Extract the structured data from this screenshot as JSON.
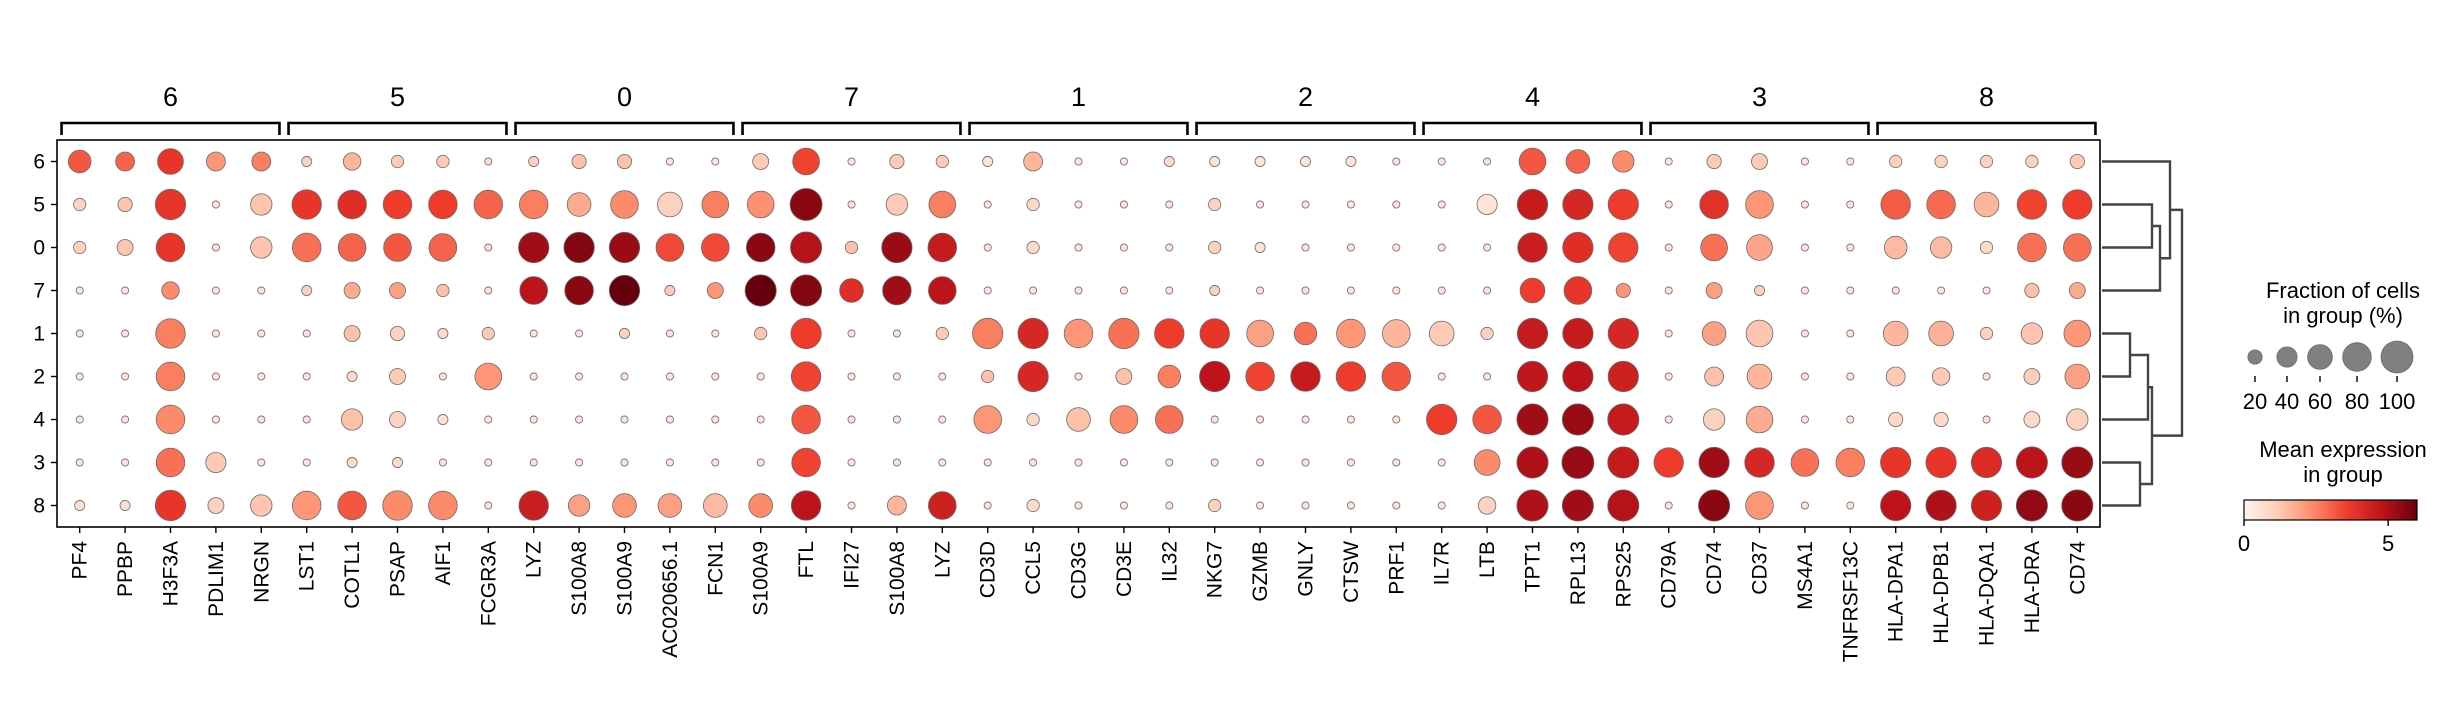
{
  "chart_data": {
    "type": "dotplot",
    "title": "",
    "xlabel": "",
    "ylabel": "",
    "groups": [
      {
        "label": "6",
        "genes": [
          "PF4",
          "PPBP",
          "H3F3A",
          "PDLIM1",
          "NRGN"
        ]
      },
      {
        "label": "5",
        "genes": [
          "LST1",
          "COTL1",
          "PSAP",
          "AIF1",
          "FCGR3A"
        ]
      },
      {
        "label": "0",
        "genes": [
          "LYZ",
          "S100A8",
          "S100A9",
          "AC020656.1",
          "FCN1"
        ]
      },
      {
        "label": "7",
        "genes": [
          "S100A9",
          "FTL",
          "IFI27",
          "S100A8",
          "LYZ"
        ]
      },
      {
        "label": "1",
        "genes": [
          "CD3D",
          "CCL5",
          "CD3G",
          "CD3E",
          "IL32"
        ]
      },
      {
        "label": "2",
        "genes": [
          "NKG7",
          "GZMB",
          "GNLY",
          "CTSW",
          "PRF1"
        ]
      },
      {
        "label": "4",
        "genes": [
          "IL7R",
          "LTB",
          "TPT1",
          "RPL13",
          "RPS25"
        ]
      },
      {
        "label": "3",
        "genes": [
          "CD79A",
          "CD74",
          "CD37",
          "MS4A1",
          "TNFRSF13C"
        ]
      },
      {
        "label": "8",
        "genes": [
          "HLA-DPA1",
          "HLA-DPB1",
          "HLA-DQA1",
          "HLA-DRA",
          "CD74"
        ]
      }
    ],
    "rows": [
      "6",
      "5",
      "0",
      "7",
      "1",
      "2",
      "4",
      "3",
      "8"
    ],
    "fraction": [
      [
        50,
        35,
        65,
        35,
        35,
        10,
        30,
        15,
        15,
        5,
        10,
        20,
        20,
        5,
        5,
        25,
        70,
        5,
        20,
        15,
        10,
        35,
        5,
        5,
        10,
        10,
        10,
        10,
        10,
        5,
        5,
        5,
        70,
        55,
        45,
        5,
        20,
        25,
        5,
        5,
        15,
        15,
        15,
        15,
        20
      ],
      [
        15,
        20,
        90,
        5,
        45,
        85,
        80,
        80,
        80,
        80,
        80,
        55,
        75,
        60,
        70,
        70,
        100,
        5,
        45,
        70,
        5,
        15,
        5,
        5,
        5,
        15,
        5,
        5,
        5,
        5,
        5,
        40,
        90,
        90,
        90,
        5,
        80,
        75,
        5,
        5,
        85,
        80,
        60,
        85,
        85
      ],
      [
        15,
        25,
        80,
        5,
        45,
        80,
        75,
        75,
        75,
        5,
        90,
        90,
        90,
        75,
        75,
        80,
        95,
        15,
        90,
        80,
        5,
        15,
        5,
        5,
        5,
        15,
        10,
        5,
        5,
        5,
        5,
        5,
        85,
        90,
        85,
        5,
        70,
        65,
        5,
        5,
        50,
        45,
        15,
        80,
        75
      ],
      [
        5,
        5,
        30,
        5,
        5,
        10,
        25,
        25,
        15,
        5,
        75,
        80,
        90,
        10,
        25,
        95,
        95,
        55,
        80,
        75,
        5,
        5,
        5,
        5,
        5,
        10,
        5,
        5,
        5,
        5,
        5,
        5,
        60,
        75,
        20,
        5,
        25,
        10,
        5,
        5,
        5,
        5,
        5,
        20,
        25
      ],
      [
        5,
        5,
        85,
        5,
        5,
        5,
        25,
        20,
        10,
        15,
        5,
        5,
        10,
        5,
        5,
        15,
        90,
        5,
        5,
        15,
        90,
        90,
        80,
        90,
        85,
        85,
        70,
        50,
        80,
        75,
        60,
        15,
        90,
        90,
        90,
        5,
        55,
        70,
        5,
        5,
        60,
        60,
        15,
        45,
        70
      ],
      [
        5,
        5,
        80,
        5,
        5,
        5,
        10,
        25,
        5,
        70,
        5,
        5,
        5,
        5,
        5,
        5,
        85,
        5,
        5,
        5,
        15,
        90,
        5,
        25,
        50,
        90,
        80,
        85,
        85,
        80,
        5,
        5,
        90,
        90,
        90,
        5,
        35,
        60,
        5,
        5,
        35,
        30,
        5,
        25,
        60
      ],
      [
        5,
        5,
        80,
        5,
        5,
        5,
        45,
        25,
        10,
        5,
        5,
        5,
        5,
        5,
        5,
        5,
        80,
        5,
        5,
        5,
        75,
        15,
        55,
        75,
        75,
        5,
        5,
        5,
        5,
        5,
        90,
        80,
        95,
        95,
        95,
        5,
        45,
        70,
        5,
        5,
        20,
        20,
        5,
        25,
        45
      ],
      [
        5,
        5,
        80,
        40,
        5,
        5,
        10,
        10,
        5,
        5,
        5,
        5,
        5,
        5,
        5,
        5,
        80,
        5,
        5,
        5,
        5,
        5,
        5,
        5,
        5,
        5,
        5,
        5,
        5,
        5,
        5,
        65,
        95,
        100,
        95,
        85,
        90,
        85,
        75,
        80,
        90,
        90,
        90,
        95,
        95
      ],
      [
        10,
        10,
        90,
        25,
        45,
        80,
        80,
        85,
        80,
        5,
        85,
        45,
        55,
        55,
        55,
        55,
        85,
        5,
        35,
        75,
        5,
        15,
        5,
        5,
        5,
        15,
        5,
        5,
        5,
        5,
        5,
        30,
        95,
        95,
        95,
        5,
        95,
        75,
        5,
        5,
        90,
        90,
        90,
        95,
        95
      ]
    ],
    "expression": [
      [
        3.2,
        3.0,
        3.8,
        2.2,
        2.6,
        1.0,
        1.6,
        1.2,
        1.2,
        0.6,
        1.0,
        1.4,
        1.4,
        0.5,
        0.5,
        1.2,
        3.5,
        0.5,
        1.2,
        1.2,
        0.5,
        1.6,
        0.5,
        0.5,
        0.8,
        0.5,
        0.5,
        0.5,
        0.5,
        0.5,
        0.5,
        0.5,
        3.2,
        3.0,
        2.4,
        0.5,
        1.2,
        1.2,
        0.5,
        0.5,
        1.0,
        1.0,
        1.0,
        1.0,
        1.2
      ],
      [
        1.0,
        1.3,
        3.8,
        0.5,
        1.3,
        3.8,
        4.0,
        3.6,
        3.6,
        3.0,
        2.6,
        1.8,
        2.4,
        1.0,
        2.6,
        2.3,
        5.5,
        0.5,
        1.2,
        2.6,
        0.5,
        0.8,
        0.5,
        0.5,
        0.5,
        1.0,
        0.5,
        0.5,
        0.5,
        0.5,
        0.5,
        0.5,
        4.6,
        4.2,
        3.6,
        0.5,
        3.9,
        2.2,
        0.5,
        0.5,
        3.1,
        2.9,
        1.6,
        3.5,
        3.6
      ],
      [
        1.0,
        1.3,
        3.8,
        0.5,
        1.3,
        2.8,
        3.0,
        3.2,
        3.0,
        0.6,
        5.2,
        5.6,
        5.3,
        3.4,
        3.4,
        5.5,
        4.9,
        1.4,
        5.3,
        4.6,
        0.5,
        0.8,
        0.5,
        0.5,
        0.5,
        1.0,
        0.5,
        0.5,
        0.5,
        0.5,
        0.5,
        0.5,
        4.5,
        4.0,
        3.5,
        0.5,
        2.8,
        1.9,
        0.5,
        0.5,
        1.5,
        1.5,
        0.8,
        2.8,
        2.8
      ],
      [
        0.5,
        0.5,
        2.4,
        0.5,
        0.5,
        1.0,
        1.8,
        2.0,
        1.4,
        0.5,
        4.8,
        5.5,
        6.0,
        1.2,
        2.2,
        6.2,
        5.6,
        4.0,
        5.2,
        4.8,
        0.5,
        0.5,
        0.5,
        0.5,
        0.5,
        1.0,
        0.5,
        0.5,
        0.5,
        0.5,
        0.5,
        0.5,
        3.6,
        3.8,
        2.2,
        0.5,
        2.0,
        1.0,
        0.5,
        0.5,
        0.5,
        0.5,
        0.5,
        1.4,
        1.8
      ],
      [
        0.5,
        0.5,
        2.6,
        0.5,
        0.5,
        0.5,
        1.4,
        1.0,
        0.8,
        1.2,
        0.5,
        0.5,
        1.0,
        0.5,
        0.5,
        1.3,
        3.6,
        0.5,
        0.5,
        1.2,
        2.6,
        4.2,
        2.2,
        2.8,
        3.6,
        3.8,
        2.0,
        2.8,
        2.2,
        1.6,
        1.2,
        1.0,
        4.6,
        4.6,
        4.2,
        0.5,
        2.0,
        1.3,
        0.5,
        0.5,
        1.6,
        1.7,
        1.0,
        1.3,
        2.2
      ],
      [
        0.5,
        0.5,
        2.6,
        0.5,
        0.5,
        0.5,
        0.8,
        1.2,
        0.5,
        2.2,
        0.5,
        0.5,
        0.5,
        0.5,
        0.5,
        0.5,
        3.5,
        0.5,
        0.5,
        0.5,
        1.4,
        4.2,
        0.5,
        1.4,
        2.6,
        4.8,
        3.5,
        4.6,
        3.6,
        3.2,
        0.5,
        0.5,
        4.7,
        4.8,
        4.4,
        0.5,
        1.4,
        1.6,
        0.5,
        0.5,
        1.2,
        1.2,
        0.5,
        1.1,
        2.0
      ],
      [
        0.5,
        0.5,
        2.4,
        0.5,
        0.5,
        0.5,
        1.4,
        1.0,
        0.6,
        0.5,
        0.5,
        0.5,
        0.5,
        0.5,
        0.5,
        0.5,
        3.2,
        0.5,
        0.5,
        0.5,
        2.2,
        0.8,
        1.4,
        2.4,
        2.8,
        0.5,
        0.5,
        0.5,
        0.5,
        0.5,
        3.6,
        3.2,
        5.2,
        5.3,
        4.6,
        0.5,
        1.0,
        1.8,
        0.5,
        0.5,
        0.8,
        0.8,
        0.5,
        0.8,
        1.0
      ],
      [
        0.5,
        0.5,
        2.8,
        1.2,
        0.5,
        0.5,
        0.8,
        0.8,
        0.5,
        0.5,
        0.5,
        0.5,
        0.5,
        0.5,
        0.5,
        0.5,
        3.5,
        0.5,
        0.5,
        0.5,
        0.5,
        0.5,
        0.5,
        0.5,
        0.5,
        0.5,
        0.5,
        0.5,
        0.5,
        0.5,
        0.5,
        2.4,
        5.0,
        5.3,
        4.6,
        3.6,
        5.2,
        4.2,
        2.8,
        2.6,
        3.8,
        3.8,
        4.1,
        4.8,
        5.3
      ],
      [
        0.6,
        0.6,
        3.8,
        1.0,
        1.3,
        2.2,
        3.2,
        2.4,
        2.4,
        0.5,
        4.5,
        2.0,
        2.2,
        2.0,
        1.5,
        2.4,
        4.8,
        0.5,
        1.6,
        4.4,
        0.5,
        0.8,
        0.5,
        0.5,
        0.5,
        1.0,
        0.5,
        0.5,
        0.5,
        0.5,
        0.5,
        1.0,
        5.0,
        5.2,
        4.9,
        0.5,
        5.5,
        2.2,
        0.5,
        0.5,
        4.8,
        5.0,
        4.4,
        5.4,
        5.5
      ]
    ],
    "size_legend": {
      "title": [
        "Fraction of cells",
        "in group (%)"
      ],
      "values": [
        20,
        40,
        60,
        80,
        100
      ]
    },
    "color_legend": {
      "title": [
        "Mean expression",
        "in group"
      ],
      "ticks": [
        0,
        5
      ],
      "vmin": 0,
      "vmax": 6,
      "colormap": [
        "#fff5f0",
        "#fdcab5",
        "#fc8b6b",
        "#ef3b2c",
        "#bc141a",
        "#67000d"
      ]
    },
    "dendrogram": "right",
    "legend_position": "right",
    "grid": false
  }
}
